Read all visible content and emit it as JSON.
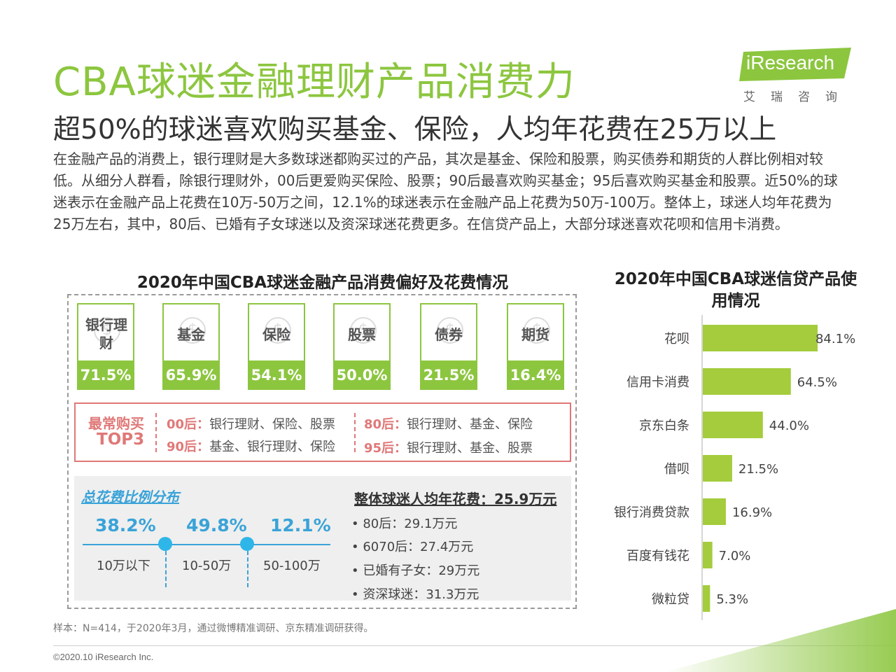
{
  "header": {
    "title": "CBA球迷金融理财产品消费力",
    "subtitle": "超50%的球迷喜欢购买基金、保险，人均年花费在25万以上",
    "body": "在金融产品的消费上，银行理财是大多数球迷都购买过的产品，其次是基金、保险和股票，购买债券和期货的人群比例相对较低。从细分人群看，除银行理财外，00后更爱购买保险、股票；90后最喜欢购买基金；95后喜欢购买基金和股票。近50%的球迷表示在金融产品上花费在10万-50万之间，12.1%的球迷表示在金融产品上花费为50万-100万。整体上，球迷人均年花费为25万左右，其中，80后、已婚有子女球迷以及资深球迷花费更多。在信贷产品上，大部分球迷喜欢花呗和信用卡消费。"
  },
  "logo": {
    "name": "iResearch",
    "sub": "艾瑞咨询",
    "color": "#8cc63f"
  },
  "left": {
    "title": "2020年中国CBA球迷金融产品消费偏好及花费情况",
    "products": [
      {
        "name": "银行理财",
        "pct": "71.5%"
      },
      {
        "name": "基金",
        "pct": "65.9%"
      },
      {
        "name": "保险",
        "pct": "54.1%"
      },
      {
        "name": "股票",
        "pct": "50.0%"
      },
      {
        "name": "债券",
        "pct": "21.5%"
      },
      {
        "name": "期货",
        "pct": "16.4%"
      }
    ],
    "top3": {
      "label1": "最常购买",
      "label2": "TOP3",
      "rows": [
        {
          "tag": "00后：",
          "text": "银行理财、保险、股票"
        },
        {
          "tag": "90后：",
          "text": "基金、银行理财、保险"
        },
        {
          "tag": "80后：",
          "text": "银行理财、基金、保险"
        },
        {
          "tag": "95后：",
          "text": "银行理财、基金、股票"
        }
      ]
    },
    "spend": {
      "title": "总花费比例分布",
      "pcts": [
        "38.2%",
        "49.8%",
        "12.1%"
      ],
      "labels": [
        "10万以下",
        "10-50万",
        "50-100万"
      ]
    },
    "avg": {
      "title": "整体球迷人均年花费：25.9万元",
      "items": [
        "80后：29.1万元",
        "6070后：27.4万元",
        "已婚有子女：29万元",
        "资深球迷：31.3万元"
      ]
    }
  },
  "chart_data": {
    "type": "bar",
    "orientation": "horizontal",
    "title": "2020年中国CBA球迷信贷产品使用情况",
    "categories": [
      "花呗",
      "信用卡消费",
      "京东白条",
      "借呗",
      "银行消费贷款",
      "百度有钱花",
      "微粒贷"
    ],
    "values": [
      84.1,
      64.5,
      44.0,
      21.5,
      16.9,
      7.0,
      5.3
    ],
    "value_labels": [
      "84.1%",
      "64.5%",
      "44.0%",
      "21.5%",
      "16.9%",
      "7.0%",
      "5.3%"
    ],
    "bar_color": "#a4cc3c",
    "xlim": [
      0,
      100
    ],
    "grid": false
  },
  "footer": {
    "note": "样本：N=414，于2020年3月，通过微博精准调研、京东精准调研获得。",
    "copyright": "©2020.10 iResearch Inc."
  }
}
